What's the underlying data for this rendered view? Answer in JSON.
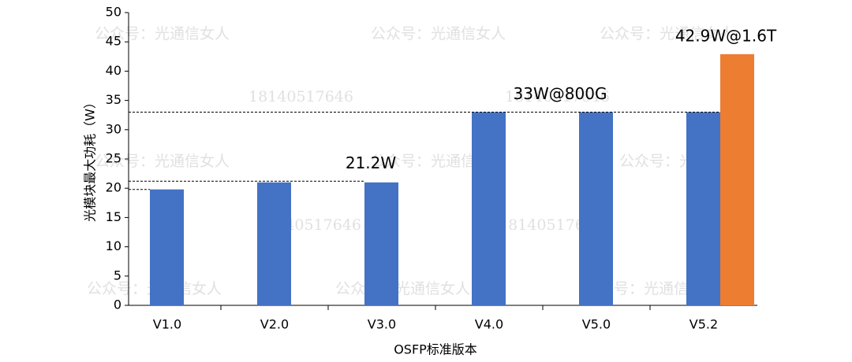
{
  "chart_data": {
    "type": "bar",
    "y_label": "光模块最大功耗（W）",
    "x_label": "OSFP标准版本",
    "categories": [
      "V1.0",
      "V2.0",
      "V3.0",
      "V4.0",
      "V5.0",
      "V5.2"
    ],
    "series": [
      {
        "color": "#4472c4",
        "values": [
          19.8,
          21,
          21,
          33,
          33,
          33
        ]
      },
      {
        "color": "#ed7d31",
        "values": [
          null,
          null,
          null,
          null,
          null,
          42.9
        ]
      }
    ],
    "ylim": [
      0,
      50
    ],
    "yticks": [
      0,
      5,
      10,
      15,
      20,
      25,
      30,
      35,
      40,
      45,
      50
    ],
    "reference_lines": [
      19.8,
      21.2,
      33
    ],
    "annotations": [
      {
        "text": "21.2W",
        "value": 21.2
      },
      {
        "text": "33W@800G",
        "value": 33
      },
      {
        "text": "42.9W@1.6T",
        "value": 42.9
      }
    ],
    "watermarks": [
      "公众号：光通信女人",
      "18140517646"
    ]
  }
}
